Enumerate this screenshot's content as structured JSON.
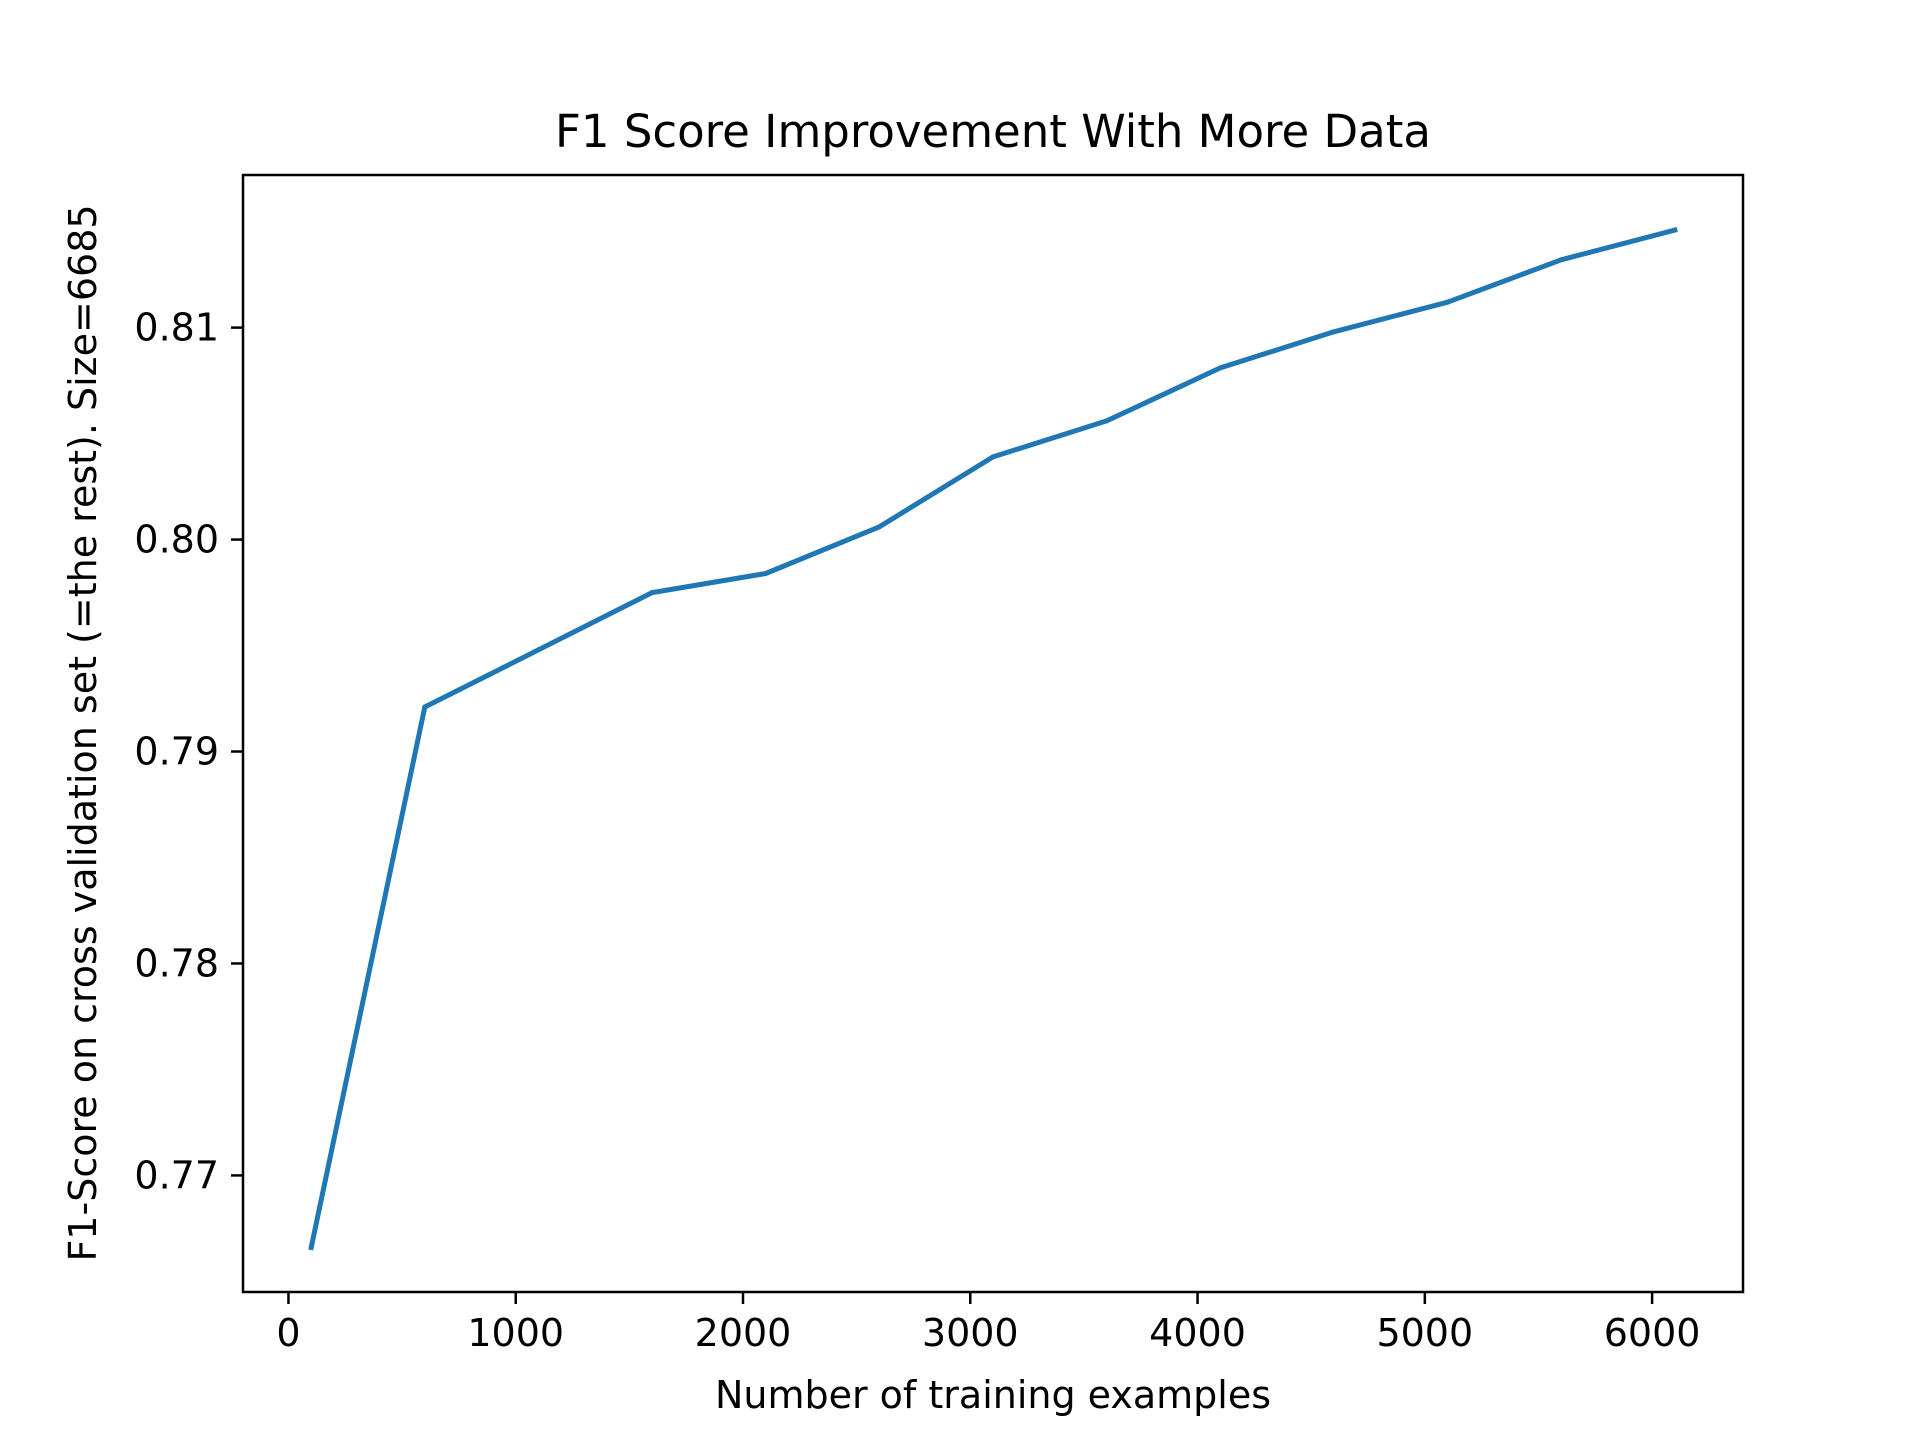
{
  "chart_data": {
    "type": "line",
    "title": "F1 Score Improvement With More Data",
    "xlabel": "Number of training examples",
    "ylabel": "F1-Score on cross validation set (=the rest). Size=6685",
    "xlim": [
      -200,
      6400
    ],
    "ylim": [
      0.7645,
      0.8172
    ],
    "xticks": [
      0,
      1000,
      2000,
      3000,
      4000,
      5000,
      6000
    ],
    "xtick_labels": [
      "0",
      "1000",
      "2000",
      "3000",
      "4000",
      "5000",
      "6000"
    ],
    "yticks": [
      0.77,
      0.78,
      0.79,
      0.8,
      0.81
    ],
    "ytick_labels": [
      "0.77",
      "0.78",
      "0.79",
      "0.80",
      "0.81"
    ],
    "grid": false,
    "series": [
      {
        "color": "#1f77b4",
        "x": [
          100,
          600,
          1100,
          1600,
          2100,
          2600,
          3100,
          3600,
          4100,
          4600,
          5100,
          5600,
          6100
        ],
        "y": [
          0.7666,
          0.7921,
          0.7948,
          0.7975,
          0.7984,
          0.8006,
          0.8039,
          0.8056,
          0.8081,
          0.8098,
          0.8112,
          0.8132,
          0.8146
        ]
      }
    ]
  }
}
